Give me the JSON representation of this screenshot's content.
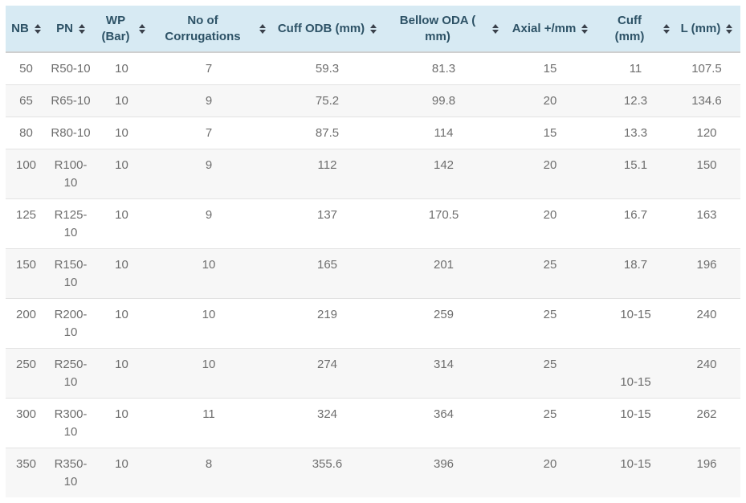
{
  "colors": {
    "header_background": "#d7eaf3",
    "header_text": "#2d5266",
    "row_text": "#6e6e6e",
    "stripe_row_background": "#f7f7f7",
    "row_border": "#e2e2e2"
  },
  "table": {
    "columns": [
      {
        "label": "NB",
        "sort_icon": "sort-both-icon"
      },
      {
        "label": "PN",
        "sort_icon": "sort-both-icon"
      },
      {
        "label": "WP (Bar)",
        "sort_icon": "sort-both-icon"
      },
      {
        "label": "No of Corrugations",
        "sort_icon": "sort-both-icon"
      },
      {
        "label": "Cuff ODB (mm)",
        "sort_icon": "sort-both-icon"
      },
      {
        "label": "Bellow ODA ( mm)",
        "sort_icon": "sort-both-icon"
      },
      {
        "label": "Axial +/mm",
        "sort_icon": "sort-both-icon"
      },
      {
        "label": "Cuff (mm)",
        "sort_icon": "sort-both-icon"
      },
      {
        "label": "L (mm)",
        "sort_icon": "sort-both-icon"
      }
    ],
    "rows": [
      [
        "50",
        "R50-10",
        "10",
        "7",
        "59.3",
        "81.3",
        "15",
        "11",
        "107.5"
      ],
      [
        "65",
        "R65-10",
        "10",
        "9",
        "75.2",
        "99.8",
        "20",
        "12.3",
        "134.6"
      ],
      [
        "80",
        "R80-10",
        "10",
        "7",
        "87.5",
        "114",
        "15",
        "13.3",
        "120"
      ],
      [
        "100",
        "R100-10",
        "10",
        "9",
        "112",
        "142",
        "20",
        "15.1",
        "150"
      ],
      [
        "125",
        "R125-10",
        "10",
        "9",
        "137",
        "170.5",
        "20",
        "16.7",
        "163"
      ],
      [
        "150",
        "R150-10",
        "10",
        "10",
        "165",
        "201",
        "25",
        "18.7",
        "196"
      ],
      [
        "200",
        "R200-10",
        "10",
        "10",
        "219",
        "259",
        "25",
        "10-15",
        "240"
      ],
      [
        "250",
        "R250-10",
        "10",
        "10",
        "274",
        "314",
        "25",
        "\n10-15",
        "240"
      ],
      [
        "300",
        "R300-10",
        "10",
        "11",
        "324",
        "364",
        "25",
        "10-15",
        "262"
      ],
      [
        "350",
        "R350-10",
        "10",
        "8",
        "355.6",
        "396",
        "20",
        "10-15",
        "196"
      ]
    ]
  }
}
